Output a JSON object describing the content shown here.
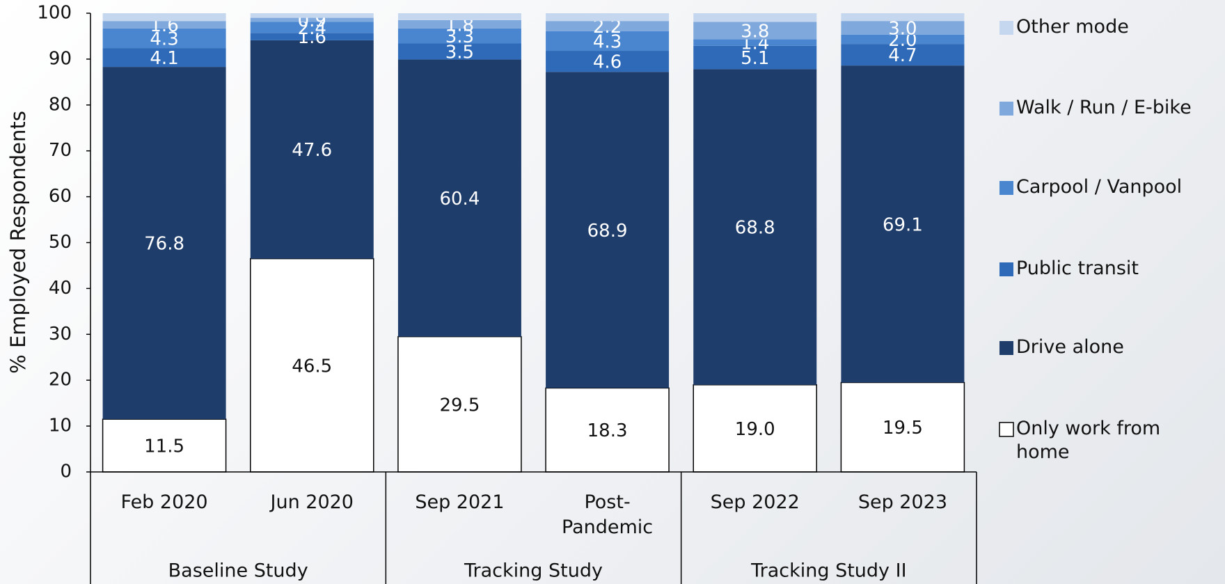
{
  "chart_data": {
    "type": "stacked_bar",
    "y_label": "% Employed Respondents",
    "categories": [
      "Feb 2020",
      "Jun 2020",
      "Sep 2021",
      "Post-Pandemic",
      "Sep 2022",
      "Sep 2023"
    ],
    "groups": [
      {
        "name": "Baseline Study",
        "span": [
          0,
          1
        ]
      },
      {
        "name": "Tracking Study",
        "span": [
          2,
          3
        ]
      },
      {
        "name": "Tracking Study II",
        "span": [
          4,
          5
        ]
      }
    ],
    "series": [
      {
        "name": "Only work from home",
        "color": "#ffffff",
        "label_color": "#111111",
        "values": [
          11.5,
          46.5,
          29.5,
          18.3,
          19.0,
          19.5
        ],
        "value_labels": [
          "11.5",
          "46.5",
          "29.5",
          "18.3",
          "19.0",
          "19.5"
        ]
      },
      {
        "name": "Drive alone",
        "color": "#1f3d6b",
        "label_color": "#ffffff",
        "values": [
          76.8,
          47.6,
          60.4,
          68.9,
          68.8,
          69.1
        ],
        "value_labels": [
          "76.8",
          "47.6",
          "60.4",
          "68.9",
          "68.8",
          "69.1"
        ]
      },
      {
        "name": "Public transit",
        "color": "#2e6ab8",
        "label_color": "#ffffff",
        "values": [
          4.1,
          1.6,
          3.5,
          4.6,
          5.1,
          4.7
        ],
        "value_labels": [
          "4.1",
          "1.6",
          "3.5",
          "4.6",
          "5.1",
          "4.7"
        ]
      },
      {
        "name": "Carpool / Vanpool",
        "color": "#4a86d0",
        "label_color": "#ffffff",
        "values": [
          4.3,
          2.4,
          3.3,
          4.3,
          1.4,
          2.0
        ],
        "value_labels": [
          "4.3",
          "2.4",
          "3.3",
          "4.3",
          "1.4",
          "2.0"
        ]
      },
      {
        "name": "Walk / Run / E-bike",
        "color": "#7fa8dc",
        "label_color": "#ffffff",
        "values": [
          1.6,
          0.9,
          1.8,
          2.2,
          3.8,
          3.0
        ],
        "value_labels": [
          "1.6",
          "0.9",
          "1.8",
          "2.2",
          "3.8",
          "3.0"
        ]
      },
      {
        "name": "Other mode",
        "color": "#c5d7ef",
        "values": [
          1.7,
          1.0,
          1.5,
          1.7,
          1.9,
          1.7
        ]
      }
    ],
    "ylim": [
      0,
      100
    ],
    "yticks": [
      0,
      10,
      20,
      30,
      40,
      50,
      60,
      70,
      80,
      90,
      100
    ]
  }
}
